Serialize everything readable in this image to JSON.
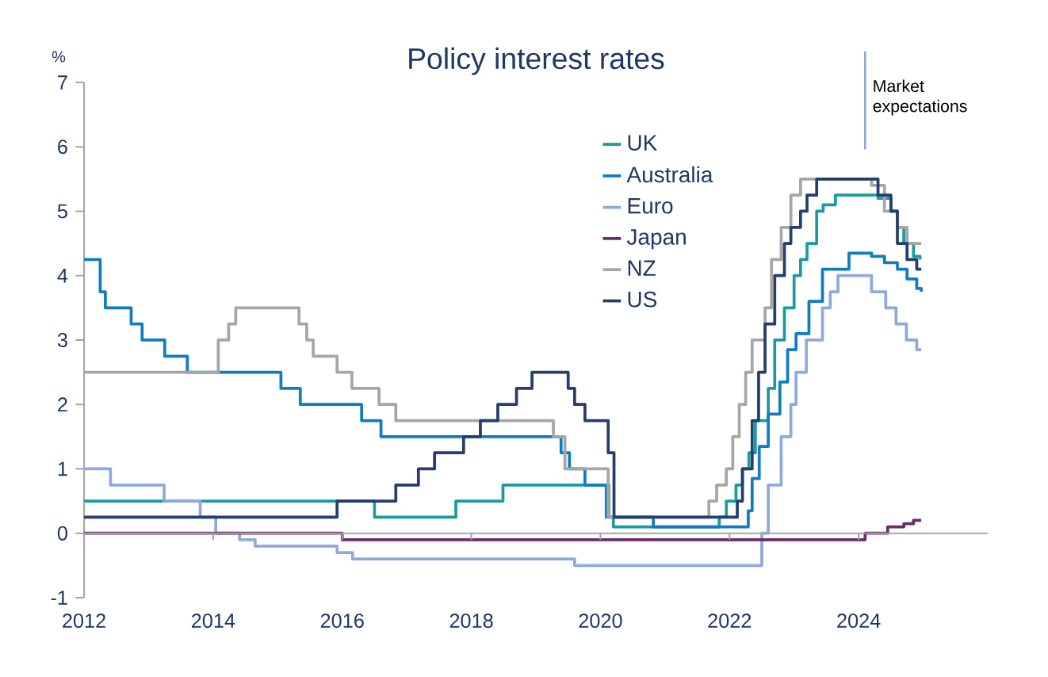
{
  "chart_data": {
    "type": "step",
    "title": "Policy interest rates",
    "ylabel": "%",
    "xlim": [
      2012,
      2026
    ],
    "xticks": [
      2012,
      2014,
      2016,
      2018,
      2020,
      2022,
      2024
    ],
    "ylim": [
      -1,
      7
    ],
    "yticks": [
      -1,
      0,
      1,
      2,
      3,
      4,
      5,
      6,
      7
    ],
    "legend": "top",
    "line_style": "solid",
    "ref_lines": [
      {
        "axis": "x",
        "value": 2024.1,
        "label": "Market expectations",
        "color": "#8eaadb"
      }
    ],
    "series": [
      {
        "name": "UK",
        "color": "#1a9ba0",
        "x": [
          2012,
          2016.5,
          2017.76,
          2018.49,
          2020.13,
          2020.2,
          2021.84,
          2021.95,
          2022.1,
          2022.2,
          2022.3,
          2022.4,
          2022.6,
          2022.7,
          2022.85,
          2023.0,
          2023.1,
          2023.2,
          2023.35,
          2023.45,
          2023.64,
          2024.3,
          2024.5,
          2024.6,
          2024.7,
          2024.85,
          2024.95
        ],
        "values": [
          0.5,
          0.25,
          0.5,
          0.75,
          0.25,
          0.1,
          0.25,
          0.5,
          0.75,
          1.0,
          1.25,
          1.75,
          2.25,
          3.0,
          3.5,
          4.0,
          4.25,
          4.5,
          5.0,
          5.1,
          5.25,
          5.2,
          5.0,
          4.75,
          4.5,
          4.3,
          4.25
        ]
      },
      {
        "name": "Australia",
        "color": "#0f7dc2",
        "x": [
          2012,
          2012.25,
          2012.33,
          2012.41,
          2012.73,
          2012.9,
          2013.25,
          2013.6,
          2015.05,
          2015.35,
          2016.3,
          2016.6,
          2019.39,
          2019.52,
          2019.76,
          2020.09,
          2020.82,
          2022.29,
          2022.35,
          2022.46,
          2022.6,
          2022.78,
          2022.9,
          2023.03,
          2023.23,
          2023.44,
          2023.85,
          2024.2,
          2024.4,
          2024.6,
          2024.75,
          2024.9,
          2024.97
        ],
        "values": [
          4.25,
          3.75,
          3.5,
          3.5,
          3.25,
          3.0,
          2.75,
          2.5,
          2.25,
          2.0,
          1.75,
          1.5,
          1.25,
          1.0,
          0.75,
          0.25,
          0.1,
          0.35,
          0.85,
          1.35,
          1.85,
          2.35,
          2.85,
          3.1,
          3.6,
          4.1,
          4.35,
          4.3,
          4.2,
          4.1,
          3.95,
          3.8,
          3.75
        ]
      },
      {
        "name": "Euro",
        "color": "#8eaadb",
        "x": [
          2012,
          2012.41,
          2013.24,
          2013.8,
          2014.04,
          2014.41,
          2014.65,
          2015.92,
          2016.16,
          2019.6,
          2022.5,
          2022.6,
          2022.8,
          2022.95,
          2023.03,
          2023.19,
          2023.44,
          2023.56,
          2023.68,
          2024.2,
          2024.42,
          2024.58,
          2024.74,
          2024.9,
          2024.97
        ],
        "values": [
          1.0,
          0.75,
          0.5,
          0.25,
          0.0,
          -0.1,
          -0.2,
          -0.3,
          -0.4,
          -0.5,
          0.0,
          0.75,
          1.5,
          2.0,
          2.5,
          3.0,
          3.5,
          3.75,
          4.0,
          3.75,
          3.5,
          3.25,
          3.0,
          2.85,
          2.85
        ]
      },
      {
        "name": "Japan",
        "color": "#6b2c6b",
        "x": [
          2012,
          2016.0,
          2024.1,
          2024.45,
          2024.7,
          2024.85,
          2024.97
        ],
        "values": [
          0.0,
          -0.1,
          0.0,
          0.1,
          0.15,
          0.2,
          0.2
        ]
      },
      {
        "name": "NZ",
        "color": "#a6a6a6",
        "x": [
          2012,
          2014.08,
          2014.24,
          2014.35,
          2014.51,
          2015.33,
          2015.45,
          2015.55,
          2015.7,
          2015.92,
          2016.15,
          2016.57,
          2016.83,
          2019.27,
          2019.45,
          2019.6,
          2020.12,
          2021.68,
          2021.8,
          2021.95,
          2022.05,
          2022.15,
          2022.25,
          2022.35,
          2022.55,
          2022.65,
          2022.8,
          2022.95,
          2023.1,
          2023.25,
          2024.2,
          2024.4,
          2024.6,
          2024.75,
          2024.97
        ],
        "values": [
          2.5,
          3.0,
          3.25,
          3.5,
          3.5,
          3.25,
          3.0,
          2.75,
          2.75,
          2.5,
          2.25,
          2.0,
          1.75,
          1.5,
          1.0,
          1.0,
          0.25,
          0.5,
          0.75,
          1.0,
          1.5,
          2.0,
          2.5,
          3.0,
          3.5,
          4.25,
          4.75,
          5.25,
          5.5,
          5.5,
          5.4,
          5.0,
          4.75,
          4.5,
          4.5
        ]
      },
      {
        "name": "US",
        "color": "#243f6b",
        "x": [
          2012,
          2015.92,
          2016.83,
          2017.18,
          2017.43,
          2017.88,
          2018.14,
          2018.41,
          2018.7,
          2018.94,
          2019.5,
          2019.6,
          2019.76,
          2020.12,
          2020.21,
          2022.12,
          2022.2,
          2022.35,
          2022.45,
          2022.55,
          2022.7,
          2022.85,
          2022.95,
          2023.1,
          2023.2,
          2023.35,
          2023.55,
          2024.3,
          2024.5,
          2024.6,
          2024.75,
          2024.9,
          2024.97
        ],
        "values": [
          0.25,
          0.5,
          0.75,
          1.0,
          1.25,
          1.5,
          1.75,
          2.0,
          2.25,
          2.5,
          2.25,
          2.0,
          1.75,
          1.25,
          0.25,
          0.5,
          1.0,
          1.75,
          2.5,
          3.25,
          4.0,
          4.5,
          4.75,
          5.0,
          5.25,
          5.5,
          5.5,
          5.25,
          5.0,
          4.5,
          4.25,
          4.1,
          4.1
        ]
      }
    ]
  }
}
